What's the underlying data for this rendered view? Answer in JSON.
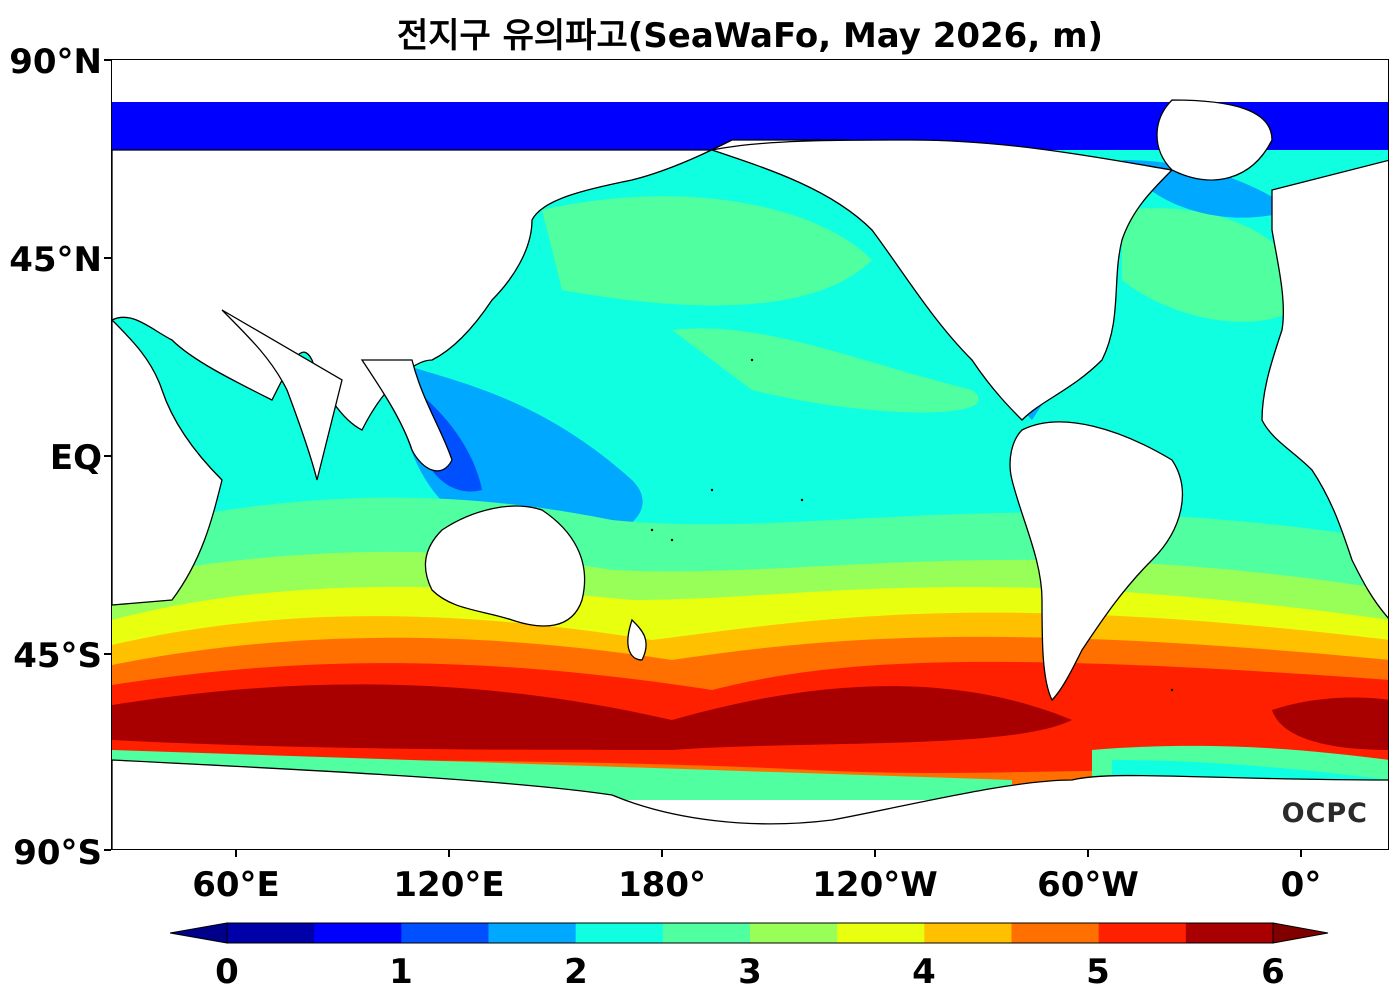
{
  "title": "전지구 유의파고(SeaWaFo, May 2026, m)",
  "lat_labels": [
    "90°N",
    "45°N",
    "EQ",
    "45°S",
    "90°S"
  ],
  "lon_labels": [
    "60°E",
    "120°E",
    "180°",
    "120°W",
    "60°W",
    "0°"
  ],
  "colorbar": {
    "tick_labels": [
      "0",
      "1",
      "2",
      "3",
      "4",
      "5",
      "6"
    ],
    "colors": [
      "#0000a8",
      "#0000ff",
      "#0050ff",
      "#00a8ff",
      "#10ffe0",
      "#50ffa0",
      "#98ff58",
      "#e8ff10",
      "#ffc000",
      "#ff7000",
      "#ff2000",
      "#a80000"
    ],
    "under_color": "#00008b",
    "over_color": "#800000"
  },
  "logo_text": "OCPC",
  "land_color": "#ffffff",
  "coastline_color": "#000000"
}
